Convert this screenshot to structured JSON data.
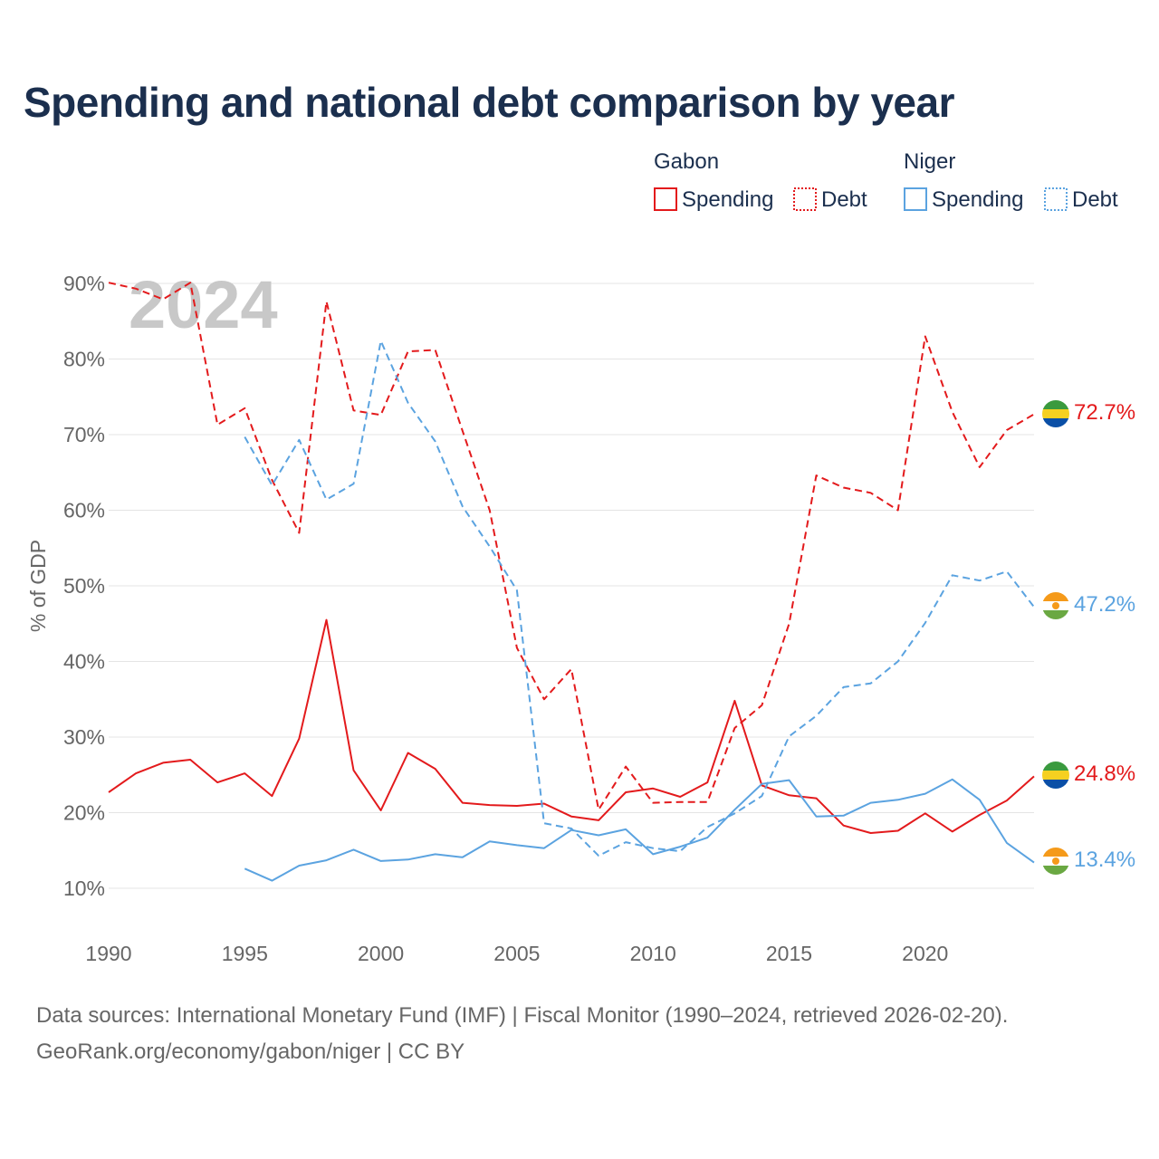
{
  "title": "Spending and national debt comparison by year",
  "footer": {
    "source": "Data sources: International Monetary Fund (IMF) | Fiscal Monitor (1990–2024, retrieved 2026-02-20).",
    "credit": "GeoRank.org/economy/gabon/niger | CC BY"
  },
  "chart_data": {
    "type": "line",
    "watermark_year": "2024",
    "ylabel": "% of GDP",
    "ylim": [
      10,
      90
    ],
    "xlim": [
      1990,
      2024
    ],
    "x_ticks": [
      1990,
      1995,
      2000,
      2005,
      2010,
      2015,
      2020
    ],
    "y_ticks": [
      10,
      20,
      30,
      40,
      50,
      60,
      70,
      80,
      90
    ],
    "y_tick_suffix": "%",
    "grid": true,
    "legend": [
      {
        "country": "Gabon",
        "items": [
          {
            "label": "Spending",
            "style": "solid"
          },
          {
            "label": "Debt",
            "style": "dotted"
          }
        ]
      },
      {
        "country": "Niger",
        "items": [
          {
            "label": "Spending",
            "style": "solid"
          },
          {
            "label": "Debt",
            "style": "dotted"
          }
        ]
      }
    ],
    "colors": {
      "Gabon": "#e31a1c",
      "Niger": "#5ba3e0"
    },
    "series": [
      {
        "name": "Gabon Debt",
        "country": "Gabon",
        "style": "dashed",
        "end_label": "72.7%",
        "x": [
          1990,
          1991,
          1992,
          1993,
          1994,
          1995,
          1996,
          1997,
          1998,
          1999,
          2000,
          2001,
          2002,
          2003,
          2004,
          2005,
          2006,
          2007,
          2008,
          2009,
          2010,
          2011,
          2012,
          2013,
          2014,
          2015,
          2016,
          2017,
          2018,
          2019,
          2020,
          2021,
          2022,
          2023,
          2024
        ],
        "values": [
          90.1,
          89.3,
          87.9,
          90.1,
          71.3,
          73.5,
          64.0,
          57.0,
          87.6,
          73.2,
          72.6,
          81.0,
          81.2,
          70.5,
          60.0,
          41.8,
          35.0,
          39.0,
          20.4,
          26.1,
          21.3,
          21.4,
          21.4,
          31.2,
          34.2,
          45.0,
          64.6,
          63.0,
          62.3,
          60.0,
          83.0,
          73.0,
          65.7,
          70.6,
          72.7
        ]
      },
      {
        "name": "Gabon Spending",
        "country": "Gabon",
        "style": "solid",
        "end_label": "24.8%",
        "x": [
          1990,
          1991,
          1992,
          1993,
          1994,
          1995,
          1996,
          1997,
          1998,
          1999,
          2000,
          2001,
          2002,
          2003,
          2004,
          2005,
          2006,
          2007,
          2008,
          2009,
          2010,
          2011,
          2012,
          2013,
          2014,
          2015,
          2016,
          2017,
          2018,
          2019,
          2020,
          2021,
          2022,
          2023,
          2024
        ],
        "values": [
          22.7,
          25.2,
          26.6,
          27.0,
          24.0,
          25.2,
          22.2,
          29.8,
          45.5,
          25.6,
          20.3,
          27.9,
          25.8,
          21.3,
          21.0,
          20.9,
          21.2,
          19.5,
          19.0,
          22.7,
          23.2,
          22.1,
          24.0,
          34.8,
          23.6,
          22.3,
          21.9,
          18.3,
          17.3,
          17.6,
          19.9,
          17.5,
          19.7,
          21.6,
          24.8
        ]
      },
      {
        "name": "Niger Debt",
        "country": "Niger",
        "style": "dashed",
        "end_label": "47.2%",
        "x": [
          1995,
          1996,
          1997,
          1998,
          1999,
          2000,
          2001,
          2002,
          2003,
          2004,
          2005,
          2006,
          2007,
          2008,
          2009,
          2010,
          2011,
          2012,
          2013,
          2014,
          2015,
          2016,
          2017,
          2018,
          2019,
          2020,
          2021,
          2022,
          2023,
          2024
        ],
        "values": [
          69.7,
          63.3,
          69.3,
          61.4,
          63.5,
          82.4,
          74.2,
          69.1,
          60.5,
          55.2,
          49.4,
          18.6,
          17.9,
          14.3,
          16.1,
          15.3,
          14.9,
          18.1,
          19.9,
          22.2,
          30.1,
          32.8,
          36.6,
          37.1,
          40.0,
          45.1,
          51.4,
          50.7,
          51.9,
          47.2
        ]
      },
      {
        "name": "Niger Spending",
        "country": "Niger",
        "style": "solid",
        "end_label": "13.4%",
        "x": [
          1995,
          1996,
          1997,
          1998,
          1999,
          2000,
          2001,
          2002,
          2003,
          2004,
          2005,
          2006,
          2007,
          2008,
          2009,
          2010,
          2011,
          2012,
          2013,
          2014,
          2015,
          2016,
          2017,
          2018,
          2019,
          2020,
          2021,
          2022,
          2023,
          2024
        ],
        "values": [
          12.6,
          11.0,
          13.0,
          13.7,
          15.1,
          13.6,
          13.8,
          14.5,
          14.1,
          16.2,
          15.7,
          15.3,
          17.7,
          17.0,
          17.8,
          14.5,
          15.5,
          16.7,
          20.4,
          23.8,
          24.3,
          19.5,
          19.6,
          21.3,
          21.7,
          22.5,
          24.4,
          21.7,
          16.0,
          13.4
        ]
      }
    ]
  }
}
